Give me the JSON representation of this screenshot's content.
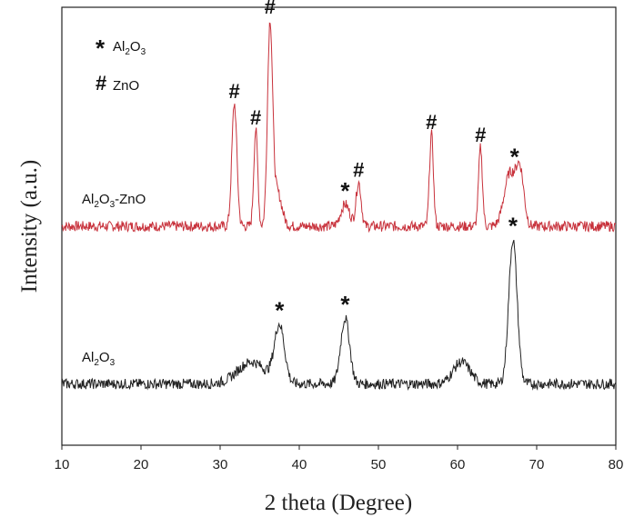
{
  "chart_data": {
    "type": "line",
    "title": "",
    "xlabel": "2 theta (Degree)",
    "ylabel": "Intensity (a.u.)",
    "xlim": [
      10,
      80
    ],
    "ylim": [
      0,
      100
    ],
    "x_ticks": [
      "10",
      "20",
      "30",
      "40",
      "50",
      "60",
      "70",
      "80"
    ],
    "y_ticks_shown": false,
    "grid": false,
    "legend": {
      "placement": "top-left",
      "entries": [
        {
          "symbol": "*",
          "formula": [
            "Al",
            "2",
            "O",
            "3"
          ]
        },
        {
          "symbol": "#",
          "text": "ZnO"
        }
      ]
    },
    "series": [
      {
        "label": [
          "Al",
          "2",
          "O",
          "3",
          "-ZnO"
        ],
        "color": "#c8323c",
        "baseline": 50,
        "peaks": [
          {
            "x": 31.8,
            "h": 28,
            "w": 0.45
          },
          {
            "x": 34.5,
            "h": 22,
            "w": 0.35
          },
          {
            "x": 36.3,
            "h": 45,
            "w": 0.45
          },
          {
            "x": 37.2,
            "h": 8,
            "w": 0.8
          },
          {
            "x": 45.8,
            "h": 5,
            "w": 0.8
          },
          {
            "x": 47.5,
            "h": 10,
            "w": 0.45
          },
          {
            "x": 56.7,
            "h": 21,
            "w": 0.35
          },
          {
            "x": 62.9,
            "h": 18,
            "w": 0.35
          },
          {
            "x": 66.6,
            "h": 12,
            "w": 1.0
          },
          {
            "x": 67.9,
            "h": 12,
            "w": 0.7
          }
        ],
        "markers": [
          {
            "symbol": "#",
            "x": 31.8
          },
          {
            "symbol": "#",
            "x": 34.5
          },
          {
            "symbol": "#",
            "x": 36.3
          },
          {
            "symbol": "*",
            "x": 45.8
          },
          {
            "symbol": "#",
            "x": 47.5
          },
          {
            "symbol": "#",
            "x": 56.7
          },
          {
            "symbol": "#",
            "x": 62.9
          },
          {
            "symbol": "*",
            "x": 67.2
          }
        ]
      },
      {
        "label": [
          "Al",
          "2",
          "O",
          "3",
          ""
        ],
        "color": "#222222",
        "baseline": 14,
        "peaks": [
          {
            "x": 34.0,
            "h": 5,
            "w": 2.5
          },
          {
            "x": 37.5,
            "h": 13,
            "w": 0.9
          },
          {
            "x": 45.8,
            "h": 15,
            "w": 0.8
          },
          {
            "x": 60.5,
            "h": 5,
            "w": 1.5
          },
          {
            "x": 67.0,
            "h": 33,
            "w": 0.75
          }
        ],
        "markers": [
          {
            "symbol": "*",
            "x": 37.5
          },
          {
            "symbol": "*",
            "x": 45.8
          },
          {
            "symbol": "*",
            "x": 67.0
          }
        ]
      }
    ]
  }
}
